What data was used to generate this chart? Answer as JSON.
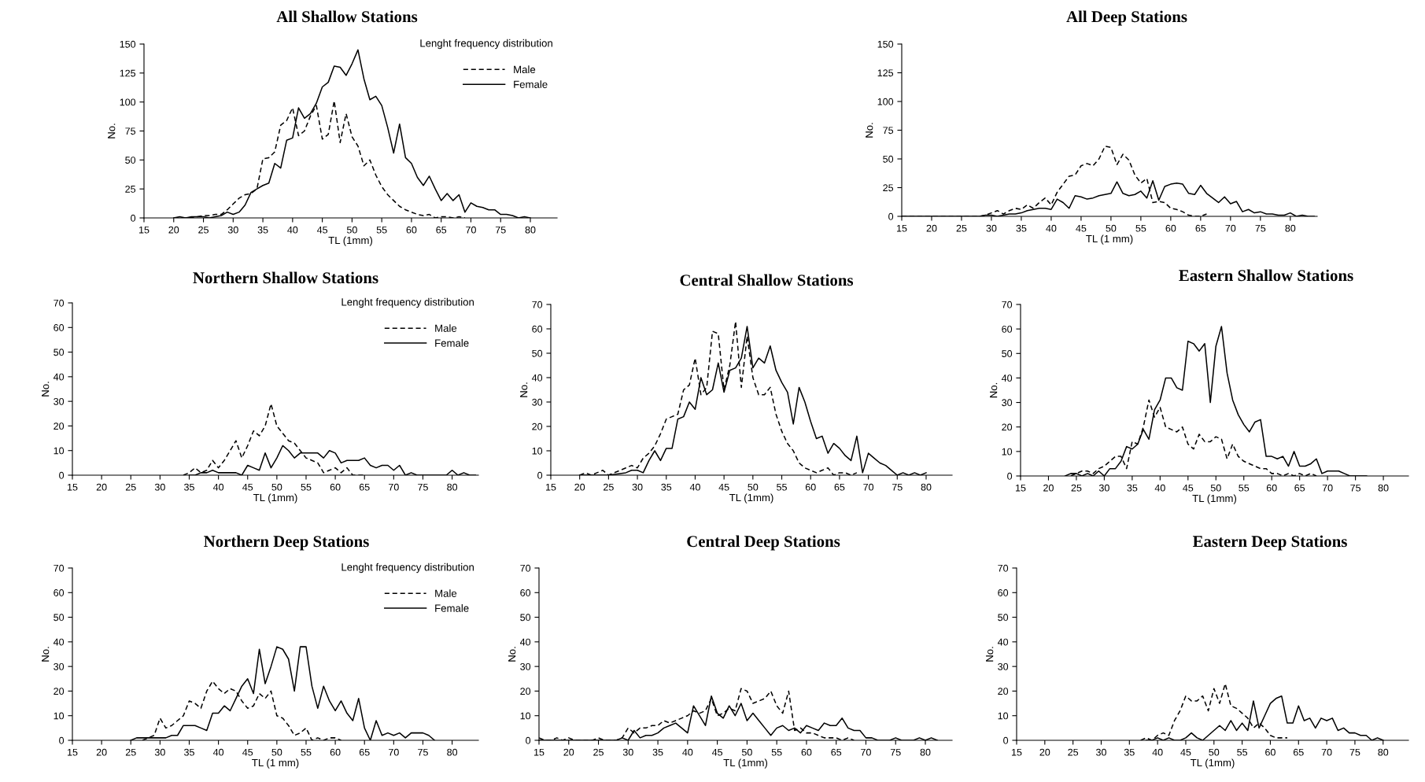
{
  "chart_data": [
    {
      "type": "line",
      "title": "All Shallow Stations",
      "xlabel": "TL (1mm)",
      "ylabel": "No.",
      "xlim": [
        15,
        84.5
      ],
      "xticks": [
        15,
        20,
        25,
        30,
        35,
        40,
        45,
        50,
        55,
        60,
        65,
        70,
        75,
        80
      ],
      "ylim": [
        0,
        150
      ],
      "yticks": [
        0,
        25,
        50,
        75,
        100,
        125,
        150
      ],
      "grid": false,
      "legend": "top right",
      "annotations": [
        "Lenght frequency distribution"
      ],
      "series": [
        {
          "name": "Male",
          "color": "#000000",
          "line_style": "dashed",
          "x": [
            20,
            22,
            24,
            25,
            26,
            27,
            28,
            29,
            30,
            31,
            32,
            33,
            34,
            35,
            36,
            37,
            38,
            39,
            40,
            41,
            42,
            43,
            44,
            45,
            46,
            47,
            48,
            49,
            50,
            51,
            52,
            53,
            54,
            55,
            56,
            57,
            58,
            59,
            60,
            61,
            62,
            63,
            64,
            65,
            66,
            67,
            68,
            69
          ],
          "values": [
            0,
            0,
            1,
            2,
            2,
            3,
            3,
            7,
            12,
            17,
            20,
            21,
            25,
            51,
            52,
            57,
            80,
            84,
            95,
            71,
            75,
            88,
            97,
            68,
            72,
            101,
            65,
            90,
            70,
            62,
            45,
            50,
            37,
            27,
            20,
            15,
            10,
            7,
            5,
            3,
            2,
            3,
            0,
            1,
            1,
            0,
            1,
            0
          ]
        },
        {
          "name": "Female",
          "color": "#000000",
          "line_style": "solid",
          "x": [
            20,
            21,
            22,
            23,
            24,
            25,
            26,
            27,
            28,
            29,
            30,
            31,
            32,
            33,
            34,
            35,
            36,
            37,
            38,
            39,
            40,
            41,
            42,
            43,
            44,
            45,
            46,
            47,
            48,
            49,
            50,
            51,
            52,
            53,
            54,
            55,
            56,
            57,
            58,
            59,
            60,
            61,
            62,
            63,
            64,
            65,
            66,
            67,
            68,
            69,
            70,
            71,
            72,
            73,
            74,
            75,
            76,
            77,
            78,
            79,
            80
          ],
          "values": [
            0,
            1,
            0,
            1,
            1,
            1,
            0,
            1,
            2,
            5,
            3,
            5,
            11,
            22,
            25,
            28,
            30,
            47,
            43,
            67,
            69,
            95,
            86,
            90,
            99,
            113,
            117,
            131,
            130,
            123,
            133,
            145,
            120,
            102,
            105,
            97,
            78,
            56,
            81,
            52,
            47,
            35,
            28,
            36,
            25,
            15,
            21,
            15,
            20,
            5,
            13,
            10,
            9,
            7,
            7,
            3,
            3,
            2,
            0,
            1,
            0
          ]
        }
      ]
    },
    {
      "type": "line",
      "title": "All Deep Stations",
      "xlabel": "TL (1 mm)",
      "ylabel": "No.",
      "xlim": [
        15,
        84.5
      ],
      "xticks": [
        15,
        20,
        25,
        30,
        35,
        40,
        45,
        50,
        55,
        60,
        65,
        70,
        75,
        80
      ],
      "ylim": [
        0,
        150
      ],
      "yticks": [
        0,
        25,
        50,
        75,
        100,
        125,
        150
      ],
      "grid": false,
      "series": [
        {
          "color": "#000000",
          "line_style": "dashed",
          "x": [
            15,
            20,
            28,
            29,
            30,
            31,
            32,
            33,
            34,
            35,
            36,
            37,
            38,
            39,
            40,
            41,
            42,
            43,
            44,
            45,
            46,
            47,
            48,
            49,
            50,
            51,
            52,
            53,
            54,
            55,
            56,
            57,
            58,
            59,
            60,
            61,
            62,
            63,
            64,
            65,
            66
          ],
          "values": [
            0,
            0,
            0,
            1,
            3,
            5,
            2,
            5,
            7,
            6,
            10,
            7,
            12,
            16,
            10,
            21,
            28,
            35,
            36,
            44,
            46,
            44,
            50,
            61,
            60,
            45,
            54,
            49,
            36,
            29,
            33,
            12,
            13,
            12,
            7,
            6,
            4,
            1,
            0,
            0,
            2
          ]
        },
        {
          "color": "#000000",
          "line_style": "solid",
          "x": [
            15,
            18,
            20,
            25,
            28,
            29,
            30,
            31,
            32,
            33,
            34,
            35,
            36,
            37,
            38,
            39,
            40,
            41,
            42,
            43,
            44,
            45,
            46,
            47,
            48,
            49,
            50,
            51,
            52,
            53,
            54,
            55,
            56,
            57,
            58,
            59,
            60,
            61,
            62,
            63,
            64,
            65,
            66,
            67,
            68,
            69,
            70,
            71,
            72,
            73,
            74,
            75,
            76,
            77,
            78,
            79,
            80,
            81,
            82,
            83,
            84
          ],
          "values": [
            0,
            0,
            0,
            0,
            0,
            1,
            1,
            0,
            1,
            2,
            2,
            3,
            5,
            6,
            7,
            7,
            6,
            15,
            12,
            7,
            18,
            17,
            15,
            16,
            18,
            19,
            20,
            30,
            20,
            18,
            19,
            22,
            16,
            31,
            14,
            26,
            28,
            29,
            28,
            20,
            19,
            27,
            20,
            16,
            12,
            17,
            11,
            13,
            4,
            6,
            3,
            4,
            2,
            2,
            1,
            1,
            3,
            0,
            1,
            0,
            0
          ]
        }
      ]
    },
    {
      "type": "line",
      "title": "Northern Shallow Stations",
      "xlabel": "TL (1mm)",
      "ylabel": "No.",
      "xlim": [
        15,
        84.5
      ],
      "xticks": [
        15,
        20,
        25,
        30,
        35,
        40,
        45,
        50,
        55,
        60,
        65,
        70,
        75,
        80
      ],
      "ylim": [
        0,
        70
      ],
      "yticks": [
        0,
        10,
        20,
        30,
        40,
        50,
        60,
        70
      ],
      "grid": false,
      "legend": "top right",
      "annotations": [
        "Lenght frequency distribution"
      ],
      "series": [
        {
          "name": "Male",
          "color": "#000000",
          "line_style": "dashed",
          "x": [
            34,
            35,
            36,
            37,
            38,
            39,
            40,
            41,
            42,
            43,
            44,
            45,
            46,
            47,
            48,
            49,
            50,
            51,
            52,
            53,
            54,
            55,
            56,
            57,
            58,
            59,
            60,
            61,
            62,
            63,
            64,
            65
          ],
          "values": [
            0,
            1,
            3,
            1,
            2,
            6,
            3,
            6,
            10,
            14,
            7,
            12,
            18,
            16,
            20,
            29,
            20,
            17,
            14,
            13,
            10,
            7,
            6,
            5,
            1,
            2,
            3,
            1,
            3,
            0,
            0,
            0
          ]
        },
        {
          "name": "Female",
          "color": "#000000",
          "line_style": "solid",
          "x": [
            35,
            36,
            37,
            38,
            39,
            40,
            41,
            42,
            43,
            44,
            45,
            46,
            47,
            48,
            49,
            50,
            51,
            52,
            53,
            54,
            55,
            56,
            57,
            58,
            59,
            60,
            61,
            62,
            63,
            64,
            65,
            66,
            67,
            68,
            69,
            70,
            71,
            72,
            73,
            74,
            75,
            79,
            80,
            81,
            82,
            83,
            84
          ],
          "values": [
            0,
            0,
            1,
            1,
            2,
            1,
            1,
            1,
            1,
            0,
            4,
            3,
            2,
            9,
            3,
            7,
            12,
            10,
            7,
            9,
            9,
            9,
            9,
            7,
            10,
            9,
            5,
            6,
            6,
            6,
            7,
            4,
            3,
            4,
            4,
            2,
            4,
            0,
            1,
            0,
            0,
            0,
            2,
            0,
            1,
            0,
            0
          ]
        }
      ]
    },
    {
      "type": "line",
      "title": "Central Shallow Stations",
      "xlabel": "TL (1mm)",
      "ylabel": "No.",
      "xlim": [
        15,
        84.5
      ],
      "xticks": [
        15,
        20,
        25,
        30,
        35,
        40,
        45,
        50,
        55,
        60,
        65,
        70,
        75,
        80
      ],
      "ylim": [
        0,
        70
      ],
      "yticks": [
        0,
        10,
        20,
        30,
        40,
        50,
        60,
        70
      ],
      "grid": false,
      "series": [
        {
          "color": "#000000",
          "line_style": "dashed",
          "x": [
            20,
            21,
            22,
            23,
            24,
            25,
            26,
            27,
            28,
            29,
            30,
            31,
            32,
            33,
            34,
            35,
            36,
            37,
            38,
            39,
            40,
            41,
            42,
            43,
            44,
            45,
            46,
            47,
            48,
            49,
            50,
            51,
            52,
            53,
            54,
            55,
            56,
            57,
            58,
            59,
            60,
            61,
            62,
            63,
            64,
            65,
            66,
            67,
            68
          ],
          "values": [
            0,
            1,
            0,
            1,
            2,
            0,
            1,
            2,
            3,
            4,
            3,
            7,
            9,
            12,
            17,
            23,
            24,
            25,
            35,
            37,
            48,
            33,
            36,
            59,
            58,
            35,
            45,
            63,
            36,
            57,
            40,
            33,
            33,
            36,
            25,
            18,
            13,
            10,
            5,
            3,
            2,
            1,
            2,
            3,
            0,
            1,
            1,
            0,
            1
          ]
        },
        {
          "color": "#000000",
          "line_style": "solid",
          "x": [
            20,
            25,
            28,
            29,
            30,
            31,
            32,
            33,
            34,
            35,
            36,
            37,
            38,
            39,
            40,
            41,
            42,
            43,
            44,
            45,
            46,
            47,
            48,
            49,
            50,
            51,
            52,
            53,
            54,
            55,
            56,
            57,
            58,
            59,
            60,
            61,
            62,
            63,
            64,
            65,
            66,
            67,
            68,
            69,
            70,
            71,
            72,
            73,
            74,
            75,
            76,
            77,
            78,
            79,
            80
          ],
          "values": [
            0,
            0,
            1,
            2,
            2,
            1,
            6,
            10,
            6,
            11,
            11,
            23,
            24,
            30,
            27,
            40,
            33,
            35,
            46,
            34,
            43,
            44,
            48,
            61,
            44,
            48,
            46,
            53,
            43,
            38,
            34,
            21,
            36,
            30,
            22,
            15,
            16,
            9,
            13,
            11,
            8,
            6,
            16,
            1,
            9,
            7,
            5,
            4,
            2,
            0,
            1,
            0,
            1,
            0,
            1
          ]
        }
      ]
    },
    {
      "type": "line",
      "title": "Eastern Shallow Stations",
      "xlabel": "TL (1mm)",
      "ylabel": "No.",
      "xlim": [
        15,
        84.5
      ],
      "xticks": [
        15,
        20,
        25,
        30,
        35,
        40,
        45,
        50,
        55,
        60,
        65,
        70,
        75,
        80
      ],
      "ylim": [
        0,
        70
      ],
      "yticks": [
        0,
        10,
        20,
        30,
        40,
        50,
        60,
        70
      ],
      "grid": false,
      "series": [
        {
          "color": "#000000",
          "line_style": "dashed",
          "x": [
            24,
            25,
            26,
            27,
            28,
            29,
            30,
            31,
            32,
            33,
            34,
            35,
            36,
            37,
            38,
            39,
            40,
            41,
            42,
            43,
            44,
            45,
            46,
            47,
            48,
            49,
            50,
            51,
            52,
            53,
            54,
            55,
            56,
            57,
            58,
            59,
            60,
            61,
            62,
            63,
            64,
            65,
            66,
            67,
            68
          ],
          "values": [
            0,
            1,
            2,
            2,
            1,
            3,
            4,
            6,
            8,
            8,
            3,
            14,
            13,
            20,
            31,
            24,
            28,
            20,
            19,
            18,
            20,
            13,
            11,
            17,
            14,
            14,
            16,
            15,
            7,
            13,
            8,
            6,
            5,
            4,
            3,
            3,
            1,
            1,
            0,
            1,
            0,
            1,
            0,
            1,
            0
          ]
        },
        {
          "color": "#000000",
          "line_style": "solid",
          "x": [
            23,
            24,
            25,
            26,
            27,
            28,
            29,
            30,
            31,
            32,
            33,
            34,
            35,
            36,
            37,
            38,
            39,
            40,
            41,
            42,
            43,
            44,
            45,
            46,
            47,
            48,
            49,
            50,
            51,
            52,
            53,
            54,
            55,
            56,
            57,
            58,
            59,
            60,
            61,
            62,
            63,
            64,
            65,
            66,
            67,
            68,
            69,
            70,
            71,
            72,
            73,
            74,
            75,
            76,
            77
          ],
          "values": [
            0,
            1,
            1,
            0,
            1,
            0,
            2,
            0,
            3,
            3,
            6,
            12,
            11,
            13,
            19,
            15,
            27,
            31,
            40,
            40,
            36,
            35,
            55,
            54,
            51,
            54,
            30,
            53,
            61,
            42,
            31,
            25,
            21,
            18,
            22,
            23,
            8,
            8,
            7,
            8,
            4,
            10,
            4,
            4,
            5,
            7,
            1,
            2,
            2,
            2,
            1,
            0,
            0,
            0,
            0
          ]
        }
      ]
    },
    {
      "type": "line",
      "title": "Northern Deep Stations",
      "xlabel": "TL (1 mm)",
      "ylabel": "No.",
      "xlim": [
        15,
        84.5
      ],
      "xticks": [
        15,
        20,
        25,
        30,
        35,
        40,
        45,
        50,
        55,
        60,
        65,
        70,
        75,
        80
      ],
      "ylim": [
        0,
        70
      ],
      "yticks": [
        0,
        10,
        20,
        30,
        40,
        50,
        60,
        70
      ],
      "grid": false,
      "legend": "top right",
      "annotations": [
        "Lenght frequency distribution"
      ],
      "series": [
        {
          "name": "Male",
          "color": "#000000",
          "line_style": "dashed",
          "x": [
            27,
            28,
            29,
            30,
            31,
            32,
            33,
            34,
            35,
            36,
            37,
            38,
            39,
            40,
            41,
            42,
            43,
            44,
            45,
            46,
            47,
            48,
            49,
            50,
            51,
            52,
            53,
            54,
            55,
            56,
            57,
            58,
            59,
            60,
            61
          ],
          "values": [
            0,
            1,
            2,
            9,
            5,
            6,
            8,
            10,
            16,
            15,
            13,
            20,
            24,
            21,
            19,
            21,
            20,
            16,
            13,
            14,
            19,
            17,
            20,
            10,
            9,
            6,
            2,
            3,
            5,
            0,
            1,
            0,
            1,
            1,
            0
          ]
        },
        {
          "name": "Female",
          "color": "#000000",
          "line_style": "solid",
          "x": [
            25,
            26,
            27,
            28,
            29,
            30,
            31,
            32,
            33,
            34,
            35,
            36,
            37,
            38,
            39,
            40,
            41,
            42,
            43,
            44,
            45,
            46,
            47,
            48,
            49,
            50,
            51,
            52,
            53,
            54,
            55,
            56,
            57,
            58,
            59,
            60,
            61,
            62,
            63,
            64,
            65,
            66,
            67,
            68,
            69,
            70,
            71,
            72,
            73,
            74,
            75,
            76,
            77
          ],
          "values": [
            0,
            1,
            1,
            1,
            1,
            1,
            1,
            2,
            2,
            6,
            6,
            6,
            5,
            4,
            11,
            11,
            14,
            12,
            17,
            22,
            25,
            19,
            37,
            23,
            30,
            38,
            37,
            33,
            20,
            38,
            38,
            22,
            13,
            22,
            16,
            12,
            16,
            11,
            8,
            17,
            5,
            0,
            8,
            2,
            3,
            2,
            3,
            1,
            3,
            3,
            3,
            2,
            0
          ]
        }
      ]
    },
    {
      "type": "line",
      "title": "Central Deep Stations",
      "xlabel": "TL (1mm)",
      "ylabel": "No.",
      "xlim": [
        15,
        84.5
      ],
      "xticks": [
        15,
        20,
        25,
        30,
        35,
        40,
        45,
        50,
        55,
        60,
        65,
        70,
        75,
        80
      ],
      "ylim": [
        0,
        70
      ],
      "yticks": [
        0,
        10,
        20,
        30,
        40,
        50,
        60,
        70
      ],
      "grid": false,
      "series": [
        {
          "color": "#000000",
          "line_style": "dashed",
          "x": [
            15,
            16,
            17,
            18,
            19,
            20,
            21,
            24,
            25,
            26,
            28,
            29,
            30,
            31,
            32,
            33,
            34,
            35,
            36,
            37,
            38,
            39,
            40,
            41,
            42,
            43,
            44,
            45,
            46,
            47,
            48,
            49,
            50,
            51,
            52,
            53,
            54,
            55,
            56,
            57,
            58,
            59,
            60,
            61,
            62,
            63,
            64,
            65,
            66,
            67,
            68
          ],
          "values": [
            1,
            0,
            0,
            1,
            0,
            1,
            0,
            0,
            1,
            0,
            0,
            1,
            5,
            3,
            5,
            5,
            6,
            6,
            8,
            7,
            8,
            9,
            10,
            12,
            11,
            12,
            17,
            10,
            11,
            13,
            12,
            21,
            20,
            15,
            16,
            17,
            20,
            14,
            11,
            20,
            4,
            5,
            3,
            3,
            2,
            1,
            1,
            1,
            0,
            1,
            0
          ]
        },
        {
          "color": "#000000",
          "line_style": "solid",
          "x": [
            15,
            20,
            28,
            29,
            30,
            31,
            32,
            33,
            34,
            35,
            36,
            37,
            38,
            39,
            40,
            41,
            42,
            43,
            44,
            45,
            46,
            47,
            48,
            49,
            50,
            51,
            52,
            53,
            54,
            55,
            56,
            57,
            58,
            59,
            60,
            61,
            62,
            63,
            64,
            65,
            66,
            67,
            68,
            69,
            70,
            71,
            72,
            73,
            74,
            75,
            76,
            77,
            78,
            79,
            80,
            81,
            82
          ],
          "values": [
            0,
            0,
            0,
            1,
            0,
            4,
            1,
            2,
            2,
            3,
            5,
            6,
            7,
            5,
            3,
            14,
            10,
            6,
            18,
            11,
            9,
            14,
            10,
            15,
            8,
            11,
            8,
            5,
            2,
            5,
            6,
            4,
            5,
            3,
            6,
            5,
            4,
            7,
            6,
            6,
            9,
            5,
            4,
            4,
            1,
            1,
            0,
            0,
            0,
            1,
            0,
            0,
            0,
            1,
            0,
            1,
            0
          ]
        }
      ]
    },
    {
      "type": "line",
      "title": "Eastern Deep Stations",
      "xlabel": "TL (1mm)",
      "ylabel": "No.",
      "xlim": [
        15,
        84.5
      ],
      "xticks": [
        15,
        20,
        25,
        30,
        35,
        40,
        45,
        50,
        55,
        60,
        65,
        70,
        75,
        80
      ],
      "ylim": [
        0,
        70
      ],
      "yticks": [
        0,
        10,
        20,
        30,
        40,
        50,
        60,
        70
      ],
      "grid": false,
      "series": [
        {
          "color": "#000000",
          "line_style": "dashed",
          "x": [
            37,
            38,
            39,
            40,
            41,
            42,
            43,
            44,
            45,
            46,
            47,
            48,
            49,
            50,
            51,
            52,
            53,
            54,
            55,
            56,
            57,
            58,
            59,
            60,
            61,
            62,
            63
          ],
          "values": [
            0,
            1,
            0,
            2,
            3,
            2,
            8,
            12,
            18,
            16,
            16,
            18,
            12,
            21,
            15,
            23,
            14,
            13,
            11,
            9,
            5,
            7,
            5,
            2,
            1,
            1,
            1
          ]
        },
        {
          "color": "#000000",
          "line_style": "solid",
          "x": [
            38,
            39,
            40,
            41,
            42,
            43,
            44,
            45,
            46,
            47,
            48,
            49,
            50,
            51,
            52,
            53,
            54,
            55,
            56,
            57,
            58,
            59,
            60,
            61,
            62,
            63,
            64,
            65,
            66,
            67,
            68,
            69,
            70,
            71,
            72,
            73,
            74,
            75,
            76,
            77,
            78,
            79,
            80
          ],
          "values": [
            0,
            0,
            1,
            0,
            1,
            0,
            0,
            1,
            3,
            1,
            0,
            2,
            4,
            6,
            4,
            8,
            4,
            7,
            4,
            16,
            5,
            10,
            15,
            17,
            18,
            7,
            7,
            14,
            8,
            9,
            5,
            9,
            8,
            9,
            4,
            5,
            3,
            3,
            2,
            2,
            0,
            1,
            0
          ]
        }
      ]
    }
  ]
}
